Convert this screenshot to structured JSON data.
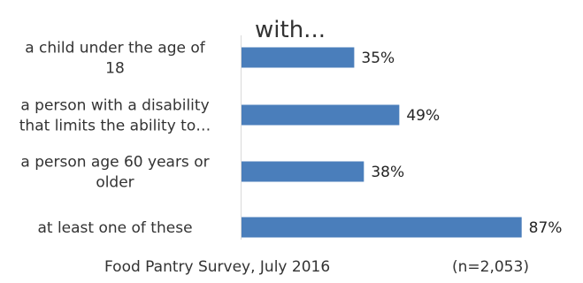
{
  "chart_data": {
    "type": "bar",
    "orientation": "horizontal",
    "title": "with...",
    "categories": [
      [
        "a child under the age of",
        "18"
      ],
      [
        "a person with a disability",
        "that limits the ability to…"
      ],
      [
        "a person age 60 years or",
        "older"
      ],
      [
        "at least one of these"
      ]
    ],
    "values": [
      35,
      49,
      38,
      87
    ],
    "value_labels": [
      "35%",
      "49%",
      "38%",
      "87%"
    ],
    "xlim": [
      0,
      100
    ],
    "bar_color": "#4a7ebb",
    "grid": false,
    "legend": "none"
  },
  "footer": {
    "source": "Food Pantry Survey, July 2016",
    "sample": "(n=2,053)"
  }
}
